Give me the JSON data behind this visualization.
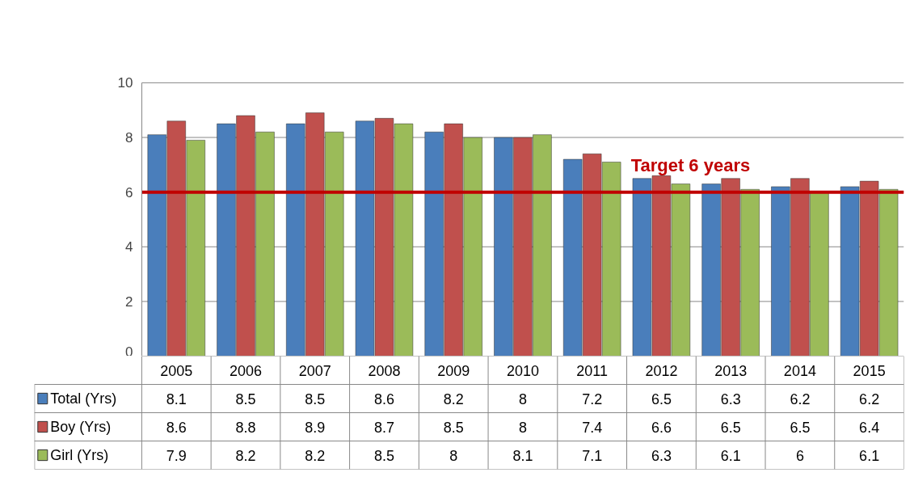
{
  "chart_data": {
    "type": "bar",
    "categories": [
      "2005",
      "2006",
      "2007",
      "2008",
      "2009",
      "2010",
      "2011",
      "2012",
      "2013",
      "2014",
      "2015"
    ],
    "series": [
      {
        "name": "Total (Yrs)",
        "color": "#4a7ebb",
        "values": [
          8.1,
          8.5,
          8.5,
          8.6,
          8.2,
          8,
          7.2,
          6.5,
          6.3,
          6.2,
          6.2
        ]
      },
      {
        "name": "Boy (Yrs)",
        "color": "#c0504d",
        "values": [
          8.6,
          8.8,
          8.9,
          8.7,
          8.5,
          8,
          7.4,
          6.6,
          6.5,
          6.5,
          6.4
        ]
      },
      {
        "name": "Girl (Yrs)",
        "color": "#9bbb59",
        "values": [
          7.9,
          8.2,
          8.2,
          8.5,
          8,
          8.1,
          7.1,
          6.3,
          6.1,
          6,
          6.1
        ]
      }
    ],
    "ylim": [
      0,
      10
    ],
    "yticks": [
      0,
      2,
      4,
      6,
      8,
      10
    ],
    "grid": "y",
    "ref_lines": [
      {
        "axis": "y",
        "value": 6,
        "label": "Target 6 years",
        "color": "#c00000"
      }
    ],
    "data_labels": true,
    "legend": "bottom"
  }
}
